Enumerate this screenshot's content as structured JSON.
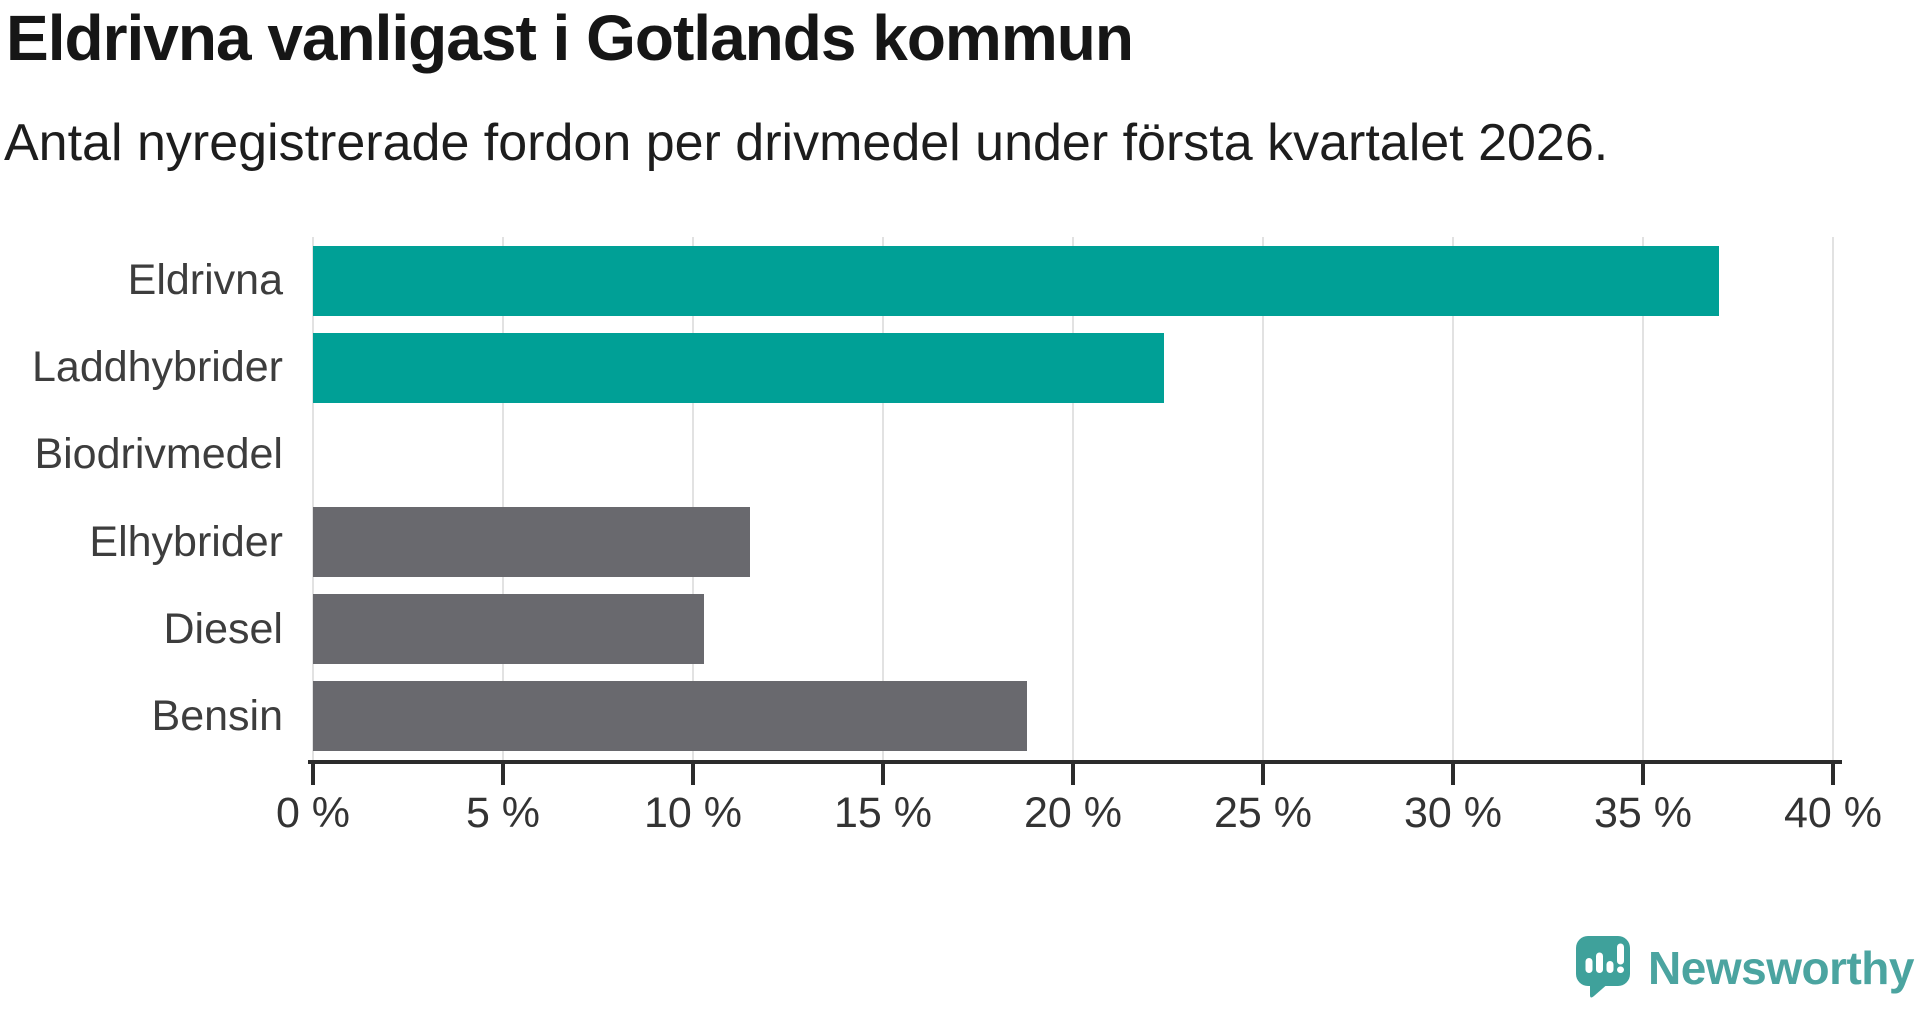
{
  "chart": {
    "title": "Eldrivna vanligast i Gotlands kommun",
    "subtitle": "Antal nyregistrerade fordon per drivmedel under första kvartalet 2026."
  },
  "chart_data": {
    "type": "bar",
    "orientation": "horizontal",
    "title": "Eldrivna vanligast i Gotlands kommun",
    "subtitle": "Antal nyregistrerade fordon per drivmedel under första kvartalet 2026.",
    "categories": [
      "Eldrivna",
      "Laddhybrider",
      "Biodrivmedel",
      "Elhybrider",
      "Diesel",
      "Bensin"
    ],
    "values": [
      37.0,
      22.4,
      0,
      11.5,
      10.3,
      18.8
    ],
    "unit": "%",
    "bar_colors": [
      "#00a096",
      "#00a096",
      "#00a096",
      "#69696e",
      "#69696e",
      "#69696e"
    ],
    "xlabel": "",
    "ylabel": "",
    "xlim": [
      0,
      40
    ],
    "x_ticks": [
      0,
      5,
      10,
      15,
      20,
      25,
      30,
      35,
      40
    ],
    "x_tick_labels": [
      "0 %",
      "5 %",
      "10 %",
      "15 %",
      "20 %",
      "25 %",
      "30 %",
      "35 %",
      "40 %"
    ],
    "grid": true,
    "legend": false
  },
  "branding": {
    "logo_text": "Newsworthy"
  },
  "colors": {
    "highlight_teal": "#00a096",
    "neutral_gray": "#69696e",
    "gridline": "#e2e2e2",
    "axis": "#2b2b2b",
    "logo_icon": "#3fa19b",
    "logo_text": "#4ba4a0"
  }
}
